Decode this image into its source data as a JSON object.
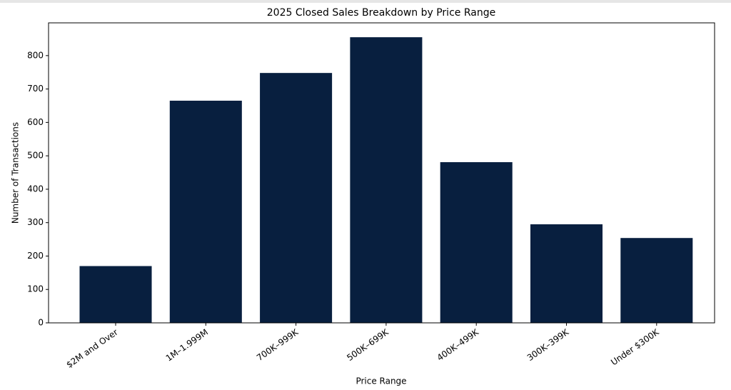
{
  "chart_data": {
    "type": "bar",
    "title": "2025 Closed Sales Breakdown by Price Range",
    "x_label": "Price Range",
    "y_label": "Number of Transactions",
    "categories": [
      "$2M and Over",
      "1M–1.999M",
      "700K–999K",
      "500K–699K",
      "400K–499K",
      "300K–399K",
      "Under $300K"
    ],
    "values": [
      170,
      665,
      748,
      855,
      481,
      295,
      254
    ],
    "color": "#081f3f",
    "ylim": [
      0,
      898
    ],
    "yticks": [
      0,
      100,
      200,
      300,
      400,
      500,
      600,
      700,
      800
    ],
    "grid": false
  }
}
